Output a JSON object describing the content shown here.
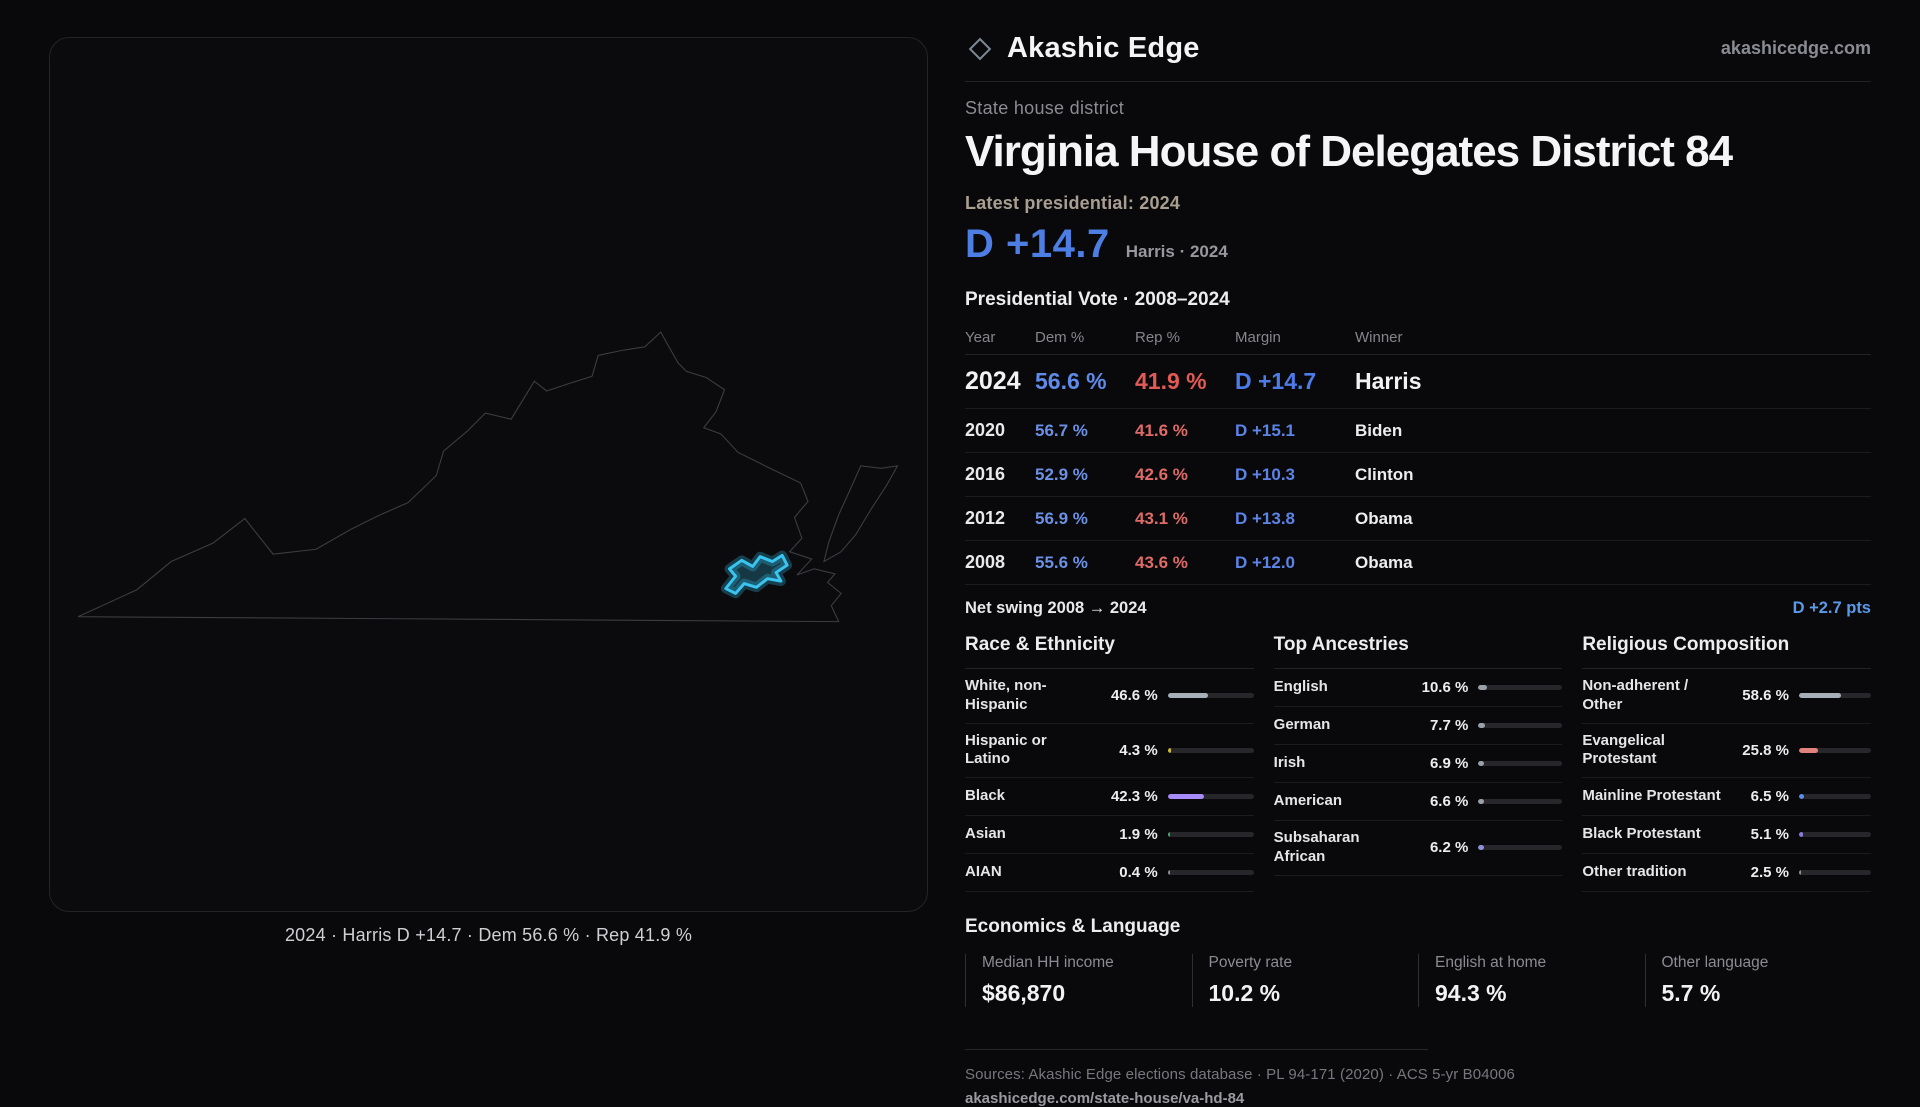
{
  "brand": {
    "name": "Akashic Edge",
    "domain": "akashicedge.com",
    "logo_icon": "diamond-icon"
  },
  "colors": {
    "dem_blue": "#4d7ee3",
    "rep_red": "#de6b67",
    "district_cyan": "#38c6f0",
    "background": "#09090b"
  },
  "map": {
    "caption": "2024 · Harris D +14.7 · Dem 56.6 % · Rep 41.9 %"
  },
  "header": {
    "district_type": "State house district",
    "title": "Virginia House of Delegates District 84",
    "latest_label": "Latest presidential: 2024",
    "margin_big": "D +14.7",
    "margin_sub": "Harris · 2024"
  },
  "vote_table": {
    "title": "Presidential Vote · 2008–2024",
    "columns": [
      "Year",
      "Dem %",
      "Rep %",
      "Margin",
      "Winner"
    ],
    "rows": [
      {
        "year": "2024",
        "dem": "56.6 %",
        "rep": "41.9 %",
        "margin": "D +14.7",
        "winner": "Harris"
      },
      {
        "year": "2020",
        "dem": "56.7 %",
        "rep": "41.6 %",
        "margin": "D +15.1",
        "winner": "Biden"
      },
      {
        "year": "2016",
        "dem": "52.9 %",
        "rep": "42.6 %",
        "margin": "D +10.3",
        "winner": "Clinton"
      },
      {
        "year": "2012",
        "dem": "56.9 %",
        "rep": "43.1 %",
        "margin": "D +13.8",
        "winner": "Obama"
      },
      {
        "year": "2008",
        "dem": "55.6 %",
        "rep": "43.6 %",
        "margin": "D +12.0",
        "winner": "Obama"
      }
    ],
    "net_swing_label": "Net swing 2008 → 2024",
    "net_swing_value": "D +2.7 pts"
  },
  "demographics": {
    "race": {
      "title": "Race & Ethnicity",
      "items": [
        {
          "label": "White, non-Hispanic",
          "value": "46.6 %",
          "pct": 46.6,
          "color": "#a8aeb8"
        },
        {
          "label": "Hispanic or Latino",
          "value": "4.3 %",
          "pct": 4.3,
          "color": "#d4b83a"
        },
        {
          "label": "Black",
          "value": "42.3 %",
          "pct": 42.3,
          "color": "#a78bfa"
        },
        {
          "label": "Asian",
          "value": "1.9 %",
          "pct": 1.9,
          "color": "#3fae6a"
        },
        {
          "label": "AIAN",
          "value": "0.4 %",
          "pct": 0.4,
          "color": "#8a8f98"
        }
      ]
    },
    "ancestries": {
      "title": "Top Ancestries",
      "items": [
        {
          "label": "English",
          "value": "10.6 %",
          "pct": 10.6,
          "color": "#9aa0a8"
        },
        {
          "label": "German",
          "value": "7.7 %",
          "pct": 7.7,
          "color": "#9aa0a8"
        },
        {
          "label": "Irish",
          "value": "6.9 %",
          "pct": 6.9,
          "color": "#9aa0a8"
        },
        {
          "label": "American",
          "value": "6.6 %",
          "pct": 6.6,
          "color": "#9aa0a8"
        },
        {
          "label": "Subsaharan African",
          "value": "6.2 %",
          "pct": 6.2,
          "color": "#8f8fd6"
        }
      ]
    },
    "religion": {
      "title": "Religious Composition",
      "items": [
        {
          "label": "Non-adherent / Other",
          "value": "58.6 %",
          "pct": 58.6,
          "color": "#a8aeb8"
        },
        {
          "label": "Evangelical Protestant",
          "value": "25.8 %",
          "pct": 25.8,
          "color": "#e2827c"
        },
        {
          "label": "Mainline Protestant",
          "value": "6.5 %",
          "pct": 6.5,
          "color": "#5b8dea"
        },
        {
          "label": "Black Protestant",
          "value": "5.1 %",
          "pct": 5.1,
          "color": "#8b7bd8"
        },
        {
          "label": "Other tradition",
          "value": "2.5 %",
          "pct": 2.5,
          "color": "#8a8f98"
        }
      ]
    }
  },
  "economics": {
    "title": "Economics & Language",
    "stats": [
      {
        "label": "Median HH income",
        "value": "$86,870"
      },
      {
        "label": "Poverty rate",
        "value": "10.2 %"
      },
      {
        "label": "English at home",
        "value": "94.3 %"
      },
      {
        "label": "Other language",
        "value": "5.7 %"
      }
    ]
  },
  "footer": {
    "sources": "Sources: Akashic Edge elections database · PL 94-171 (2020) · ACS 5-yr B04006",
    "permalink": "akashicedge.com/state-house/va-hd-84"
  }
}
